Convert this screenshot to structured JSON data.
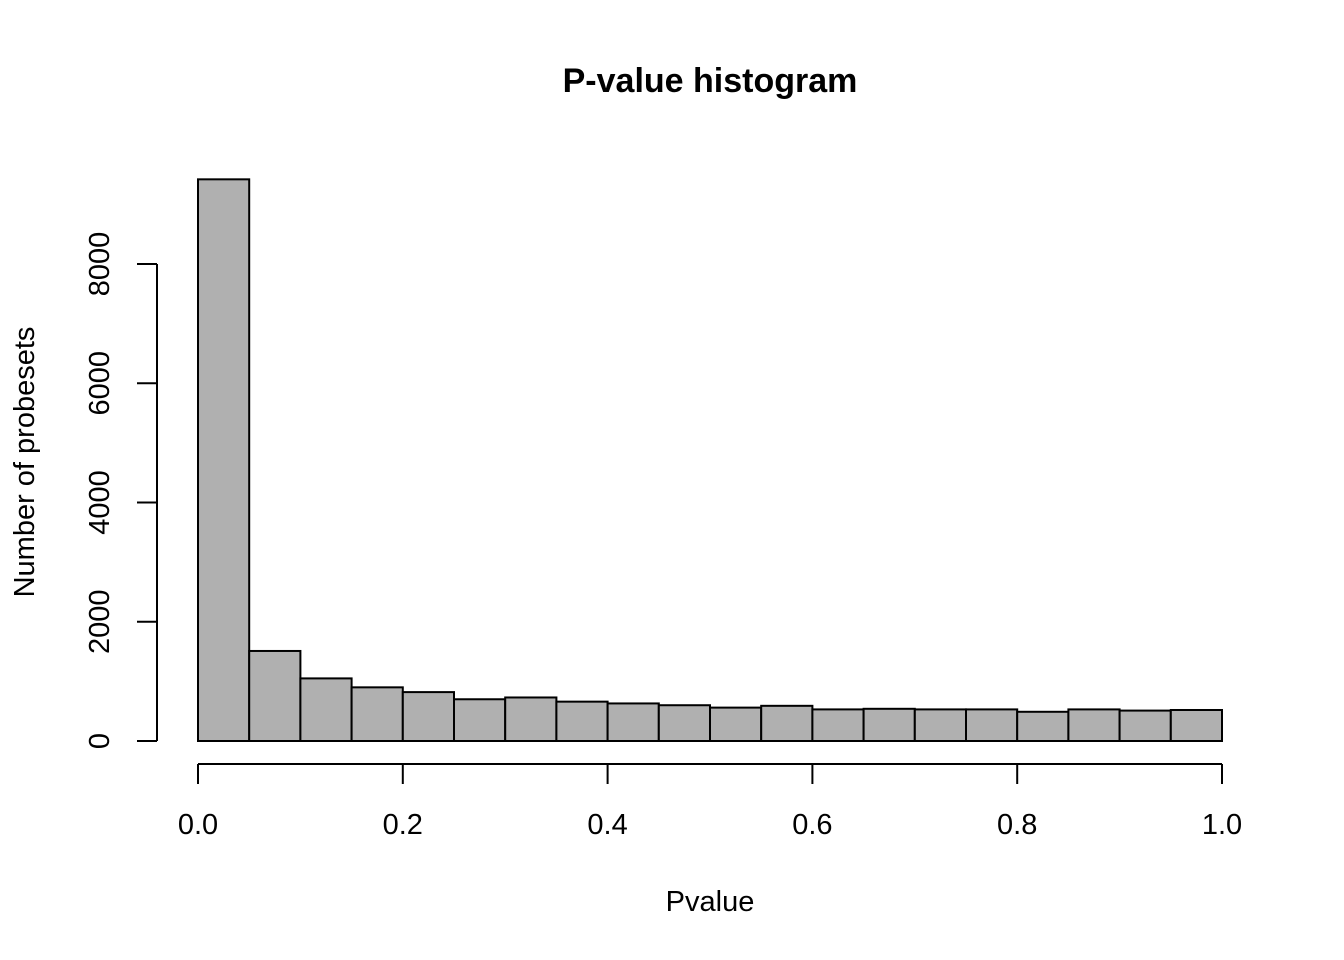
{
  "chart_data": {
    "type": "bar",
    "title": "P-value histogram",
    "xlabel": "Pvalue",
    "ylabel": "Number of probesets",
    "bin_edges": [
      0.0,
      0.05,
      0.1,
      0.15,
      0.2,
      0.25,
      0.3,
      0.35,
      0.4,
      0.45,
      0.5,
      0.55,
      0.6,
      0.65,
      0.7,
      0.75,
      0.8,
      0.85,
      0.9,
      0.95,
      1.0
    ],
    "values": [
      9420,
      1510,
      1050,
      900,
      820,
      700,
      730,
      660,
      630,
      600,
      560,
      590,
      530,
      540,
      530,
      530,
      490,
      530,
      510,
      520
    ],
    "xlim": [
      0,
      1
    ],
    "ylim": [
      0,
      9420
    ],
    "x_ticks": [
      "0.0",
      "0.2",
      "0.4",
      "0.6",
      "0.8",
      "1.0"
    ],
    "x_tick_values": [
      0,
      0.2,
      0.4,
      0.6,
      0.8,
      1.0
    ],
    "y_ticks": [
      "0",
      "2000",
      "4000",
      "6000",
      "8000"
    ],
    "y_tick_values": [
      0,
      2000,
      4000,
      6000,
      8000
    ],
    "bar_color": "#b0b0b0",
    "edge_color": "#000000",
    "grid": false,
    "legend": "none"
  }
}
